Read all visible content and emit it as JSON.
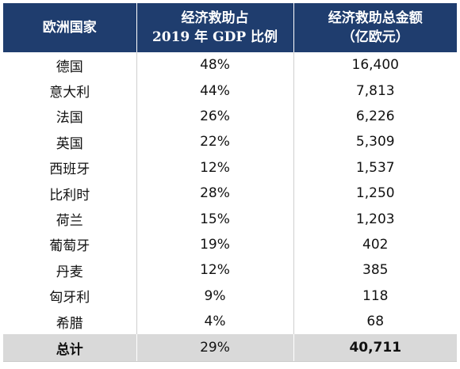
{
  "table": {
    "headers": [
      {
        "line1": "欧洲国家",
        "line2": ""
      },
      {
        "line1": "经济救助占",
        "line2": "2019 年 GDP 比例"
      },
      {
        "line1": "经济救助总金额",
        "line2": "（亿欧元）"
      }
    ],
    "rows": [
      {
        "country": "德国",
        "pct": "48%",
        "amount": "16,400"
      },
      {
        "country": "意大利",
        "pct": "44%",
        "amount": "7,813"
      },
      {
        "country": "法国",
        "pct": "26%",
        "amount": "6,226"
      },
      {
        "country": "英国",
        "pct": "22%",
        "amount": "5,309"
      },
      {
        "country": "西班牙",
        "pct": "12%",
        "amount": "1,537"
      },
      {
        "country": "比利时",
        "pct": "28%",
        "amount": "1,250"
      },
      {
        "country": "荷兰",
        "pct": "15%",
        "amount": "1,203"
      },
      {
        "country": "葡萄牙",
        "pct": "19%",
        "amount": "402"
      },
      {
        "country": "丹麦",
        "pct": "12%",
        "amount": "385"
      },
      {
        "country": "匈牙利",
        "pct": "9%",
        "amount": "118"
      },
      {
        "country": "希腊",
        "pct": "4%",
        "amount": "68"
      }
    ],
    "total": {
      "label": "总计",
      "pct": "29%",
      "amount": "40,711"
    }
  },
  "colors": {
    "header_bg": "#1f3d6e",
    "header_text": "#ffffff",
    "total_bg": "#d9d9d9"
  }
}
